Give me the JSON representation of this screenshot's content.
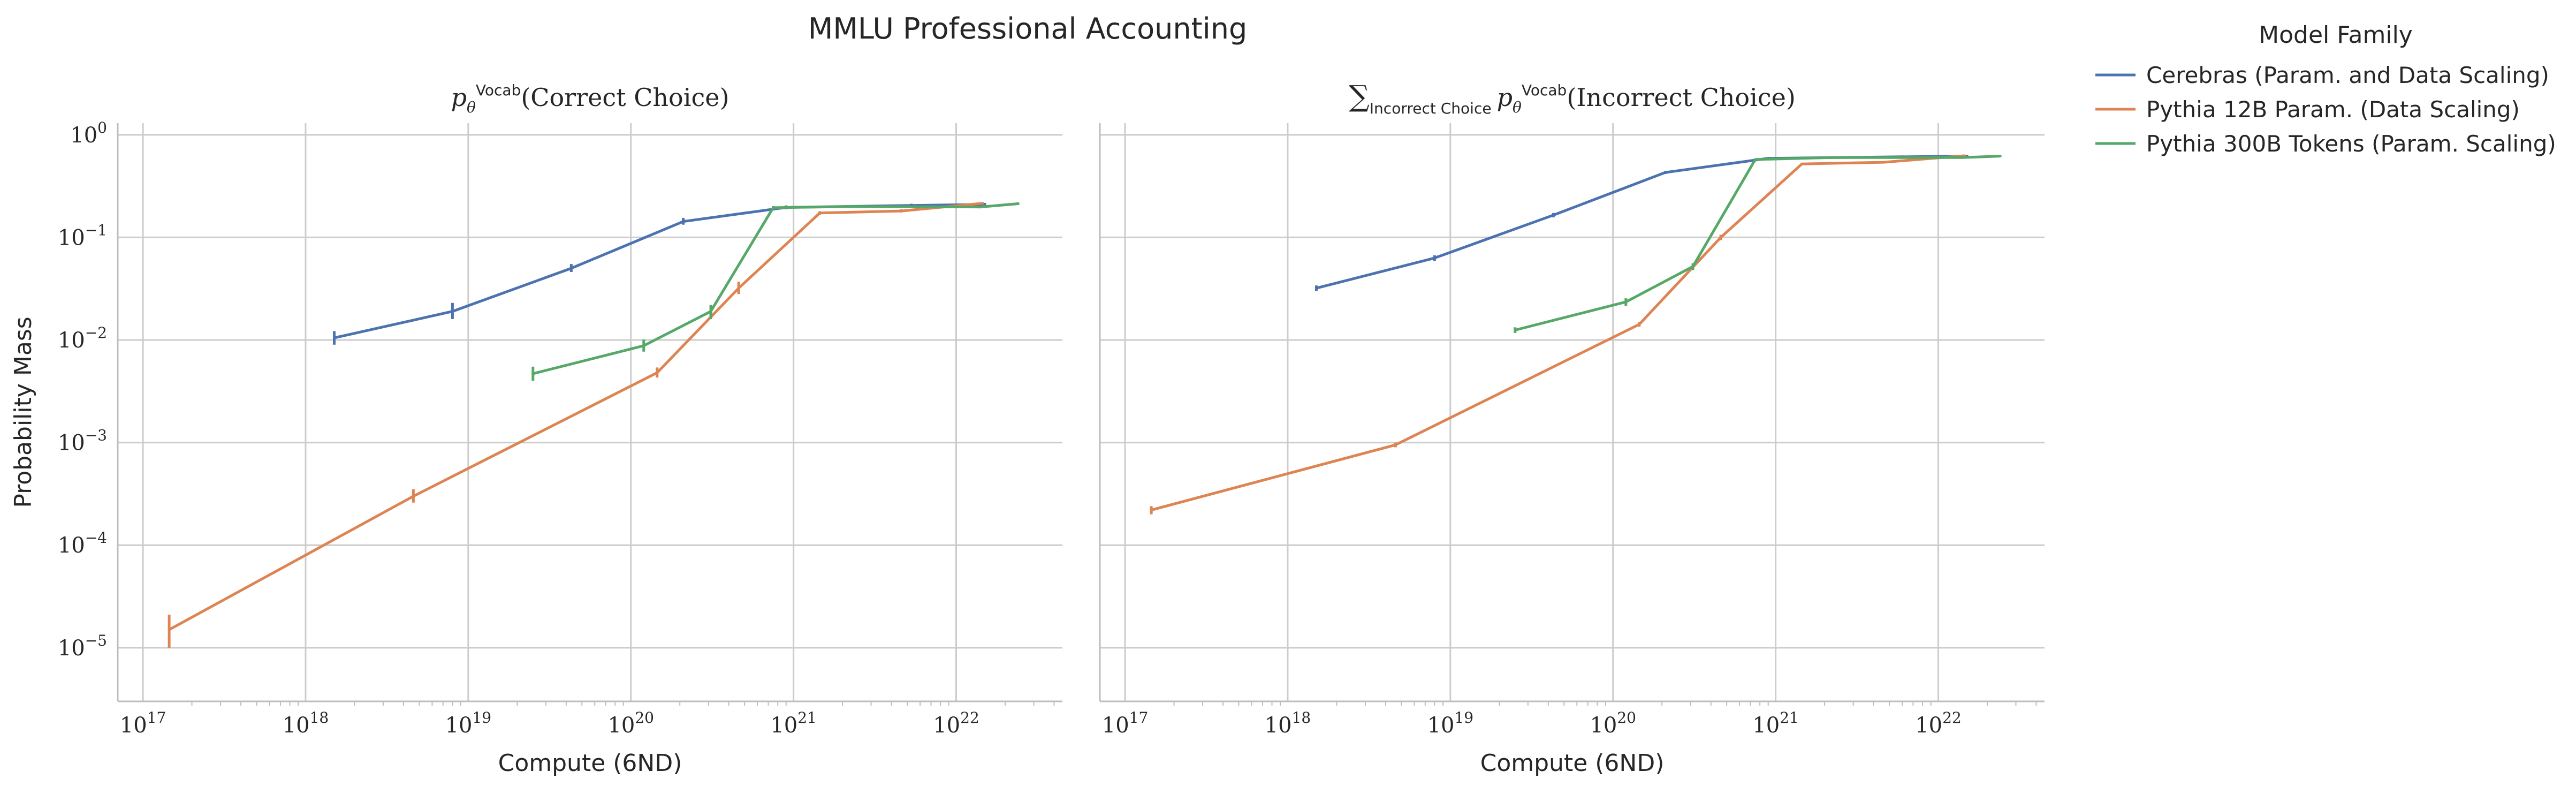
{
  "figure": {
    "title": "MMLU Professional Accounting",
    "legend": {
      "title": "Model Family",
      "placement": "right, outside plots",
      "entries": [
        {
          "label": "Cerebras (Param. and Data Scaling)",
          "color": "#4c72b0"
        },
        {
          "label": "Pythia 12B Param. (Data Scaling)",
          "color": "#dd8452"
        },
        {
          "label": "Pythia 300B Tokens (Param. Scaling)",
          "color": "#55a868"
        }
      ]
    }
  },
  "chart_data": [
    {
      "type": "line",
      "title": "p_θ^Vocab(Correct Choice)",
      "title_parts": {
        "sym": "p",
        "sub": "θ",
        "sup": "Vocab",
        "arg": "(Correct Choice)"
      },
      "xlabel": "Compute (6ND)",
      "ylabel": "Probability Mass",
      "xscale": "log",
      "yscale": "log",
      "xlim": [
        7e+16,
        4.5e+22
      ],
      "ylim": [
        3e-06,
        1.3
      ],
      "xticks": [
        {
          "exp": "17",
          "v": 1e+17
        },
        {
          "exp": "18",
          "v": 1e+18
        },
        {
          "exp": "19",
          "v": 1e+19
        },
        {
          "exp": "20",
          "v": 1e+20
        },
        {
          "exp": "21",
          "v": 1e+21
        },
        {
          "exp": "22",
          "v": 1e+22
        }
      ],
      "yticks": [
        {
          "exp": "0",
          "v": 1
        },
        {
          "exp": "−1",
          "v": 0.1
        },
        {
          "exp": "−2",
          "v": 0.01
        },
        {
          "exp": "−3",
          "v": 0.001
        },
        {
          "exp": "−4",
          "v": 0.0001
        },
        {
          "exp": "−5",
          "v": 1e-05
        }
      ],
      "grid": true,
      "series": [
        {
          "name": "Cerebras (Param. and Data Scaling)",
          "color": "#4c72b0",
          "x": [
            1.5e+18,
            8e+18,
            4.3e+19,
            2.1e+20,
            9e+20,
            5.3e+21,
            1.5e+22
          ],
          "y": [
            0.0105,
            0.019,
            0.05,
            0.143,
            0.196,
            0.205,
            0.21
          ],
          "err_lo": [
            0.009,
            0.016,
            0.046,
            0.133,
            0.188,
            0.198,
            0.204
          ],
          "err_hi": [
            0.0122,
            0.023,
            0.055,
            0.155,
            0.205,
            0.213,
            0.217
          ]
        },
        {
          "name": "Pythia 12B Param. (Data Scaling)",
          "color": "#dd8452",
          "x": [
            1.45e+17,
            4.6e+18,
            1.45e+20,
            4.6e+20,
            1.45e+21,
            4.6e+21,
            1.45e+22
          ],
          "y": [
            1.5e-05,
            0.0003,
            0.0048,
            0.032,
            0.173,
            0.181,
            0.215
          ],
          "err_lo": [
            1e-05,
            0.00026,
            0.0043,
            0.028,
            0.166,
            0.175,
            0.209
          ],
          "err_hi": [
            2.1e-05,
            0.00035,
            0.0054,
            0.037,
            0.18,
            0.188,
            0.221
          ]
        },
        {
          "name": "Pythia 300B Tokens (Param. Scaling)",
          "color": "#55a868",
          "x": [
            2.5e+19,
            1.2e+20,
            3.1e+20,
            7.5e+20,
            2.2e+21,
            1.4e+22,
            2.4e+22
          ],
          "y": [
            0.0047,
            0.0088,
            0.019,
            0.195,
            0.2,
            0.198,
            0.213
          ],
          "err_lo": [
            0.004,
            0.0077,
            0.016,
            0.188,
            0.194,
            0.192,
            0.207
          ],
          "err_hi": [
            0.0055,
            0.0101,
            0.022,
            0.202,
            0.206,
            0.204,
            0.219
          ]
        }
      ]
    },
    {
      "type": "line",
      "title": "∑_Incorrect Choice p_θ^Vocab(Incorrect Choice)",
      "title_parts": {
        "sum": "∑",
        "sumsub": "Incorrect Choice",
        "sym": "p",
        "sub": "θ",
        "sup": "Vocab",
        "arg": "(Incorrect Choice)"
      },
      "xlabel": "Compute (6ND)",
      "ylabel": "",
      "xscale": "log",
      "yscale": "log",
      "xlim": [
        7e+16,
        4.5e+22
      ],
      "ylim": [
        3e-06,
        1.3
      ],
      "xticks": [
        {
          "exp": "17",
          "v": 1e+17
        },
        {
          "exp": "18",
          "v": 1e+18
        },
        {
          "exp": "19",
          "v": 1e+19
        },
        {
          "exp": "20",
          "v": 1e+20
        },
        {
          "exp": "21",
          "v": 1e+21
        },
        {
          "exp": "22",
          "v": 1e+22
        }
      ],
      "grid": true,
      "series": [
        {
          "name": "Cerebras (Param. and Data Scaling)",
          "color": "#4c72b0",
          "x": [
            1.5e+18,
            8e+18,
            4.3e+19,
            2.1e+20,
            9e+20,
            5.3e+21,
            1.5e+22
          ],
          "y": [
            0.032,
            0.063,
            0.165,
            0.43,
            0.59,
            0.61,
            0.62
          ],
          "err_lo": [
            0.03,
            0.059,
            0.157,
            0.415,
            0.575,
            0.597,
            0.607
          ],
          "err_hi": [
            0.034,
            0.067,
            0.173,
            0.445,
            0.605,
            0.623,
            0.633
          ]
        },
        {
          "name": "Pythia 12B Param. (Data Scaling)",
          "color": "#dd8452",
          "x": [
            1.45e+17,
            4.6e+18,
            1.45e+20,
            4.6e+20,
            1.45e+21,
            4.6e+21,
            1.45e+22
          ],
          "y": [
            0.00022,
            0.00095,
            0.0142,
            0.1,
            0.52,
            0.54,
            0.625
          ],
          "err_lo": [
            0.0002,
            0.0009,
            0.0135,
            0.094,
            0.505,
            0.526,
            0.61
          ],
          "err_hi": [
            0.00024,
            0.001,
            0.0149,
            0.106,
            0.535,
            0.554,
            0.64
          ]
        },
        {
          "name": "Pythia 300B Tokens (Param. Scaling)",
          "color": "#55a868",
          "x": [
            2.5e+19,
            1.2e+20,
            3.1e+20,
            7.5e+20,
            2.2e+21,
            1.4e+22,
            2.4e+22
          ],
          "y": [
            0.0125,
            0.0235,
            0.052,
            0.575,
            0.6,
            0.6,
            0.62
          ],
          "err_lo": [
            0.0117,
            0.0215,
            0.048,
            0.56,
            0.586,
            0.586,
            0.607
          ],
          "err_hi": [
            0.0133,
            0.0255,
            0.056,
            0.59,
            0.614,
            0.614,
            0.633
          ]
        }
      ]
    }
  ]
}
